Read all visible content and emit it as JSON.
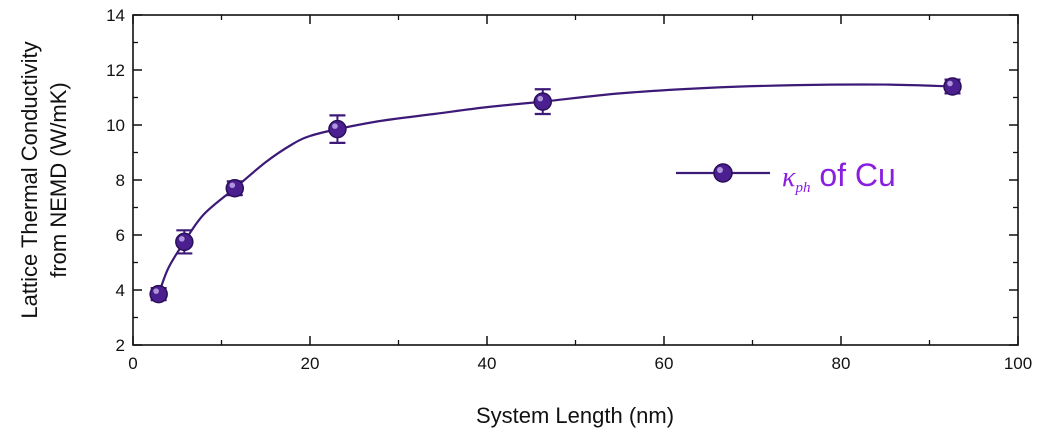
{
  "chart_data": {
    "type": "scatter",
    "xlabel": "System Length (nm)",
    "ylabel_line1": "Lattice Thermal Conductivity",
    "ylabel_line2": "from NEMD (W/mK)",
    "xlim": [
      0,
      100
    ],
    "ylim": [
      2,
      14
    ],
    "x_ticks": [
      0,
      20,
      40,
      60,
      80,
      100
    ],
    "y_ticks": [
      2,
      4,
      6,
      8,
      10,
      12,
      14
    ],
    "x_tick_labels": [
      "0",
      "20",
      "40",
      "60",
      "80",
      "100"
    ],
    "y_tick_labels": [
      "2",
      "4",
      "6",
      "8",
      "10",
      "12",
      "14"
    ],
    "grid": false,
    "legend_position": "right",
    "series": [
      {
        "name_symbol": "κ",
        "name_subscript": "ph",
        "name_suffix": " of Cu",
        "color": "#3d1a78",
        "legend_text_color": "#8a1fe0",
        "x": [
          2.9,
          5.8,
          11.5,
          23.1,
          46.3,
          92.6
        ],
        "y": [
          3.85,
          5.75,
          7.7,
          9.85,
          10.85,
          11.4
        ],
        "y_err": [
          0.22,
          0.42,
          0.25,
          0.5,
          0.45,
          0.25
        ],
        "curve_x": [
          2.9,
          4,
          5.8,
          8,
          11.5,
          15,
          18,
          20,
          23.1,
          28,
          34,
          40,
          46.3,
          55,
          65,
          75,
          85,
          92.6
        ],
        "curve_y": [
          3.85,
          4.8,
          5.75,
          6.75,
          7.7,
          8.65,
          9.3,
          9.6,
          9.85,
          10.15,
          10.4,
          10.65,
          10.85,
          11.15,
          11.35,
          11.45,
          11.47,
          11.4
        ]
      }
    ]
  }
}
